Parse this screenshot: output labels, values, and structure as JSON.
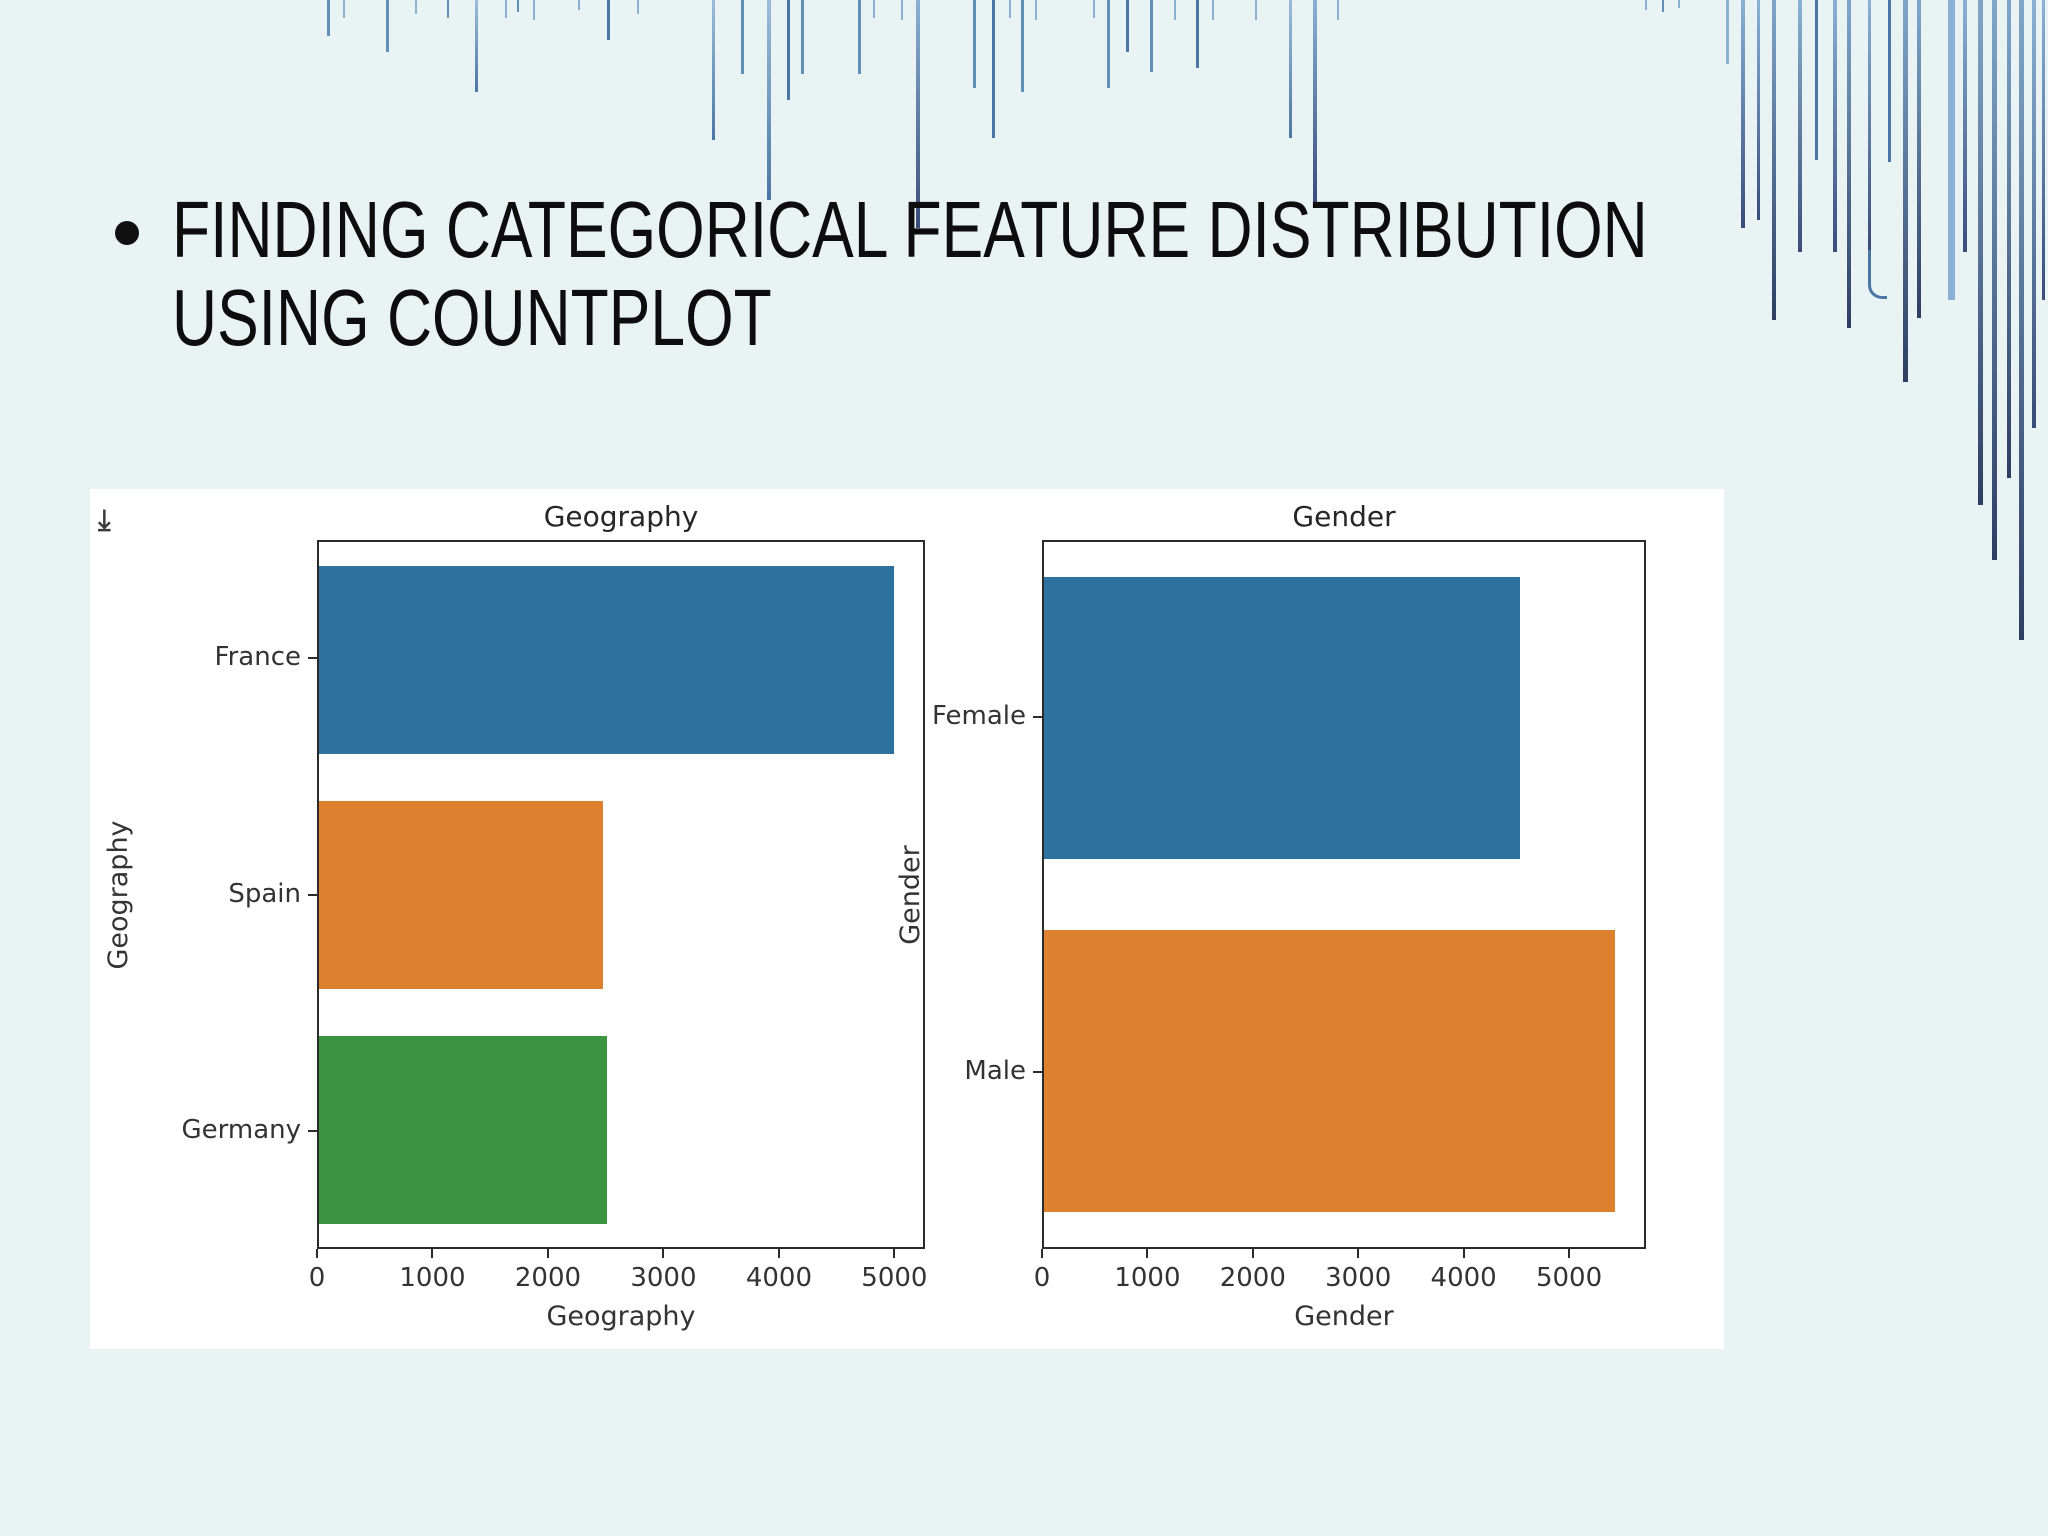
{
  "slide": {
    "bullet_glyph": "•",
    "title_line1": "FINDING CATEGORICAL FEATURE DISTRIBUTION",
    "title_line2": "USING COUNTPLOT"
  },
  "figure": {
    "corner_icon_glyph": "⇥"
  },
  "colors": {
    "background": "#e9f3f4",
    "panel": "#ffffff",
    "title_text": "#0d0d0d",
    "axis_text": "#333333",
    "spine": "#2b2b2b",
    "bar_blue": "#2e73a0",
    "bar_orange": "#de812e",
    "bar_green": "#3a9440",
    "decor_light_blue": "#8ab1d3",
    "decor_mid_blue": "#5f90b8",
    "decor_steel_blue": "#4a77a3",
    "decor_navy": "#3a4c7a",
    "decor_dark_navy": "#2e3e63"
  },
  "chart_data": [
    {
      "type": "bar",
      "orientation": "horizontal",
      "title": "Geography",
      "xlabel": "Geography",
      "ylabel": "Geography",
      "categories": [
        "France",
        "Spain",
        "Germany"
      ],
      "values": [
        5014,
        2477,
        2509
      ],
      "bar_colors": [
        "#2e73a0",
        "#de812e",
        "#3a9440"
      ],
      "xlim": [
        0,
        5265
      ],
      "xticks": [
        0,
        1000,
        2000,
        3000,
        4000,
        5000
      ],
      "bar_width_fraction": 0.8,
      "grid": "off",
      "legend": "none"
    },
    {
      "type": "bar",
      "orientation": "horizontal",
      "title": "Gender",
      "xlabel": "Gender",
      "ylabel": "Gender",
      "categories": [
        "Female",
        "Male"
      ],
      "values": [
        4543,
        5457
      ],
      "bar_colors": [
        "#2e73a0",
        "#de812e"
      ],
      "xlim": [
        0,
        5730
      ],
      "xticks": [
        0,
        1000,
        2000,
        3000,
        4000,
        5000
      ],
      "bar_width_fraction": 0.8,
      "grid": "off",
      "legend": "none"
    }
  ]
}
